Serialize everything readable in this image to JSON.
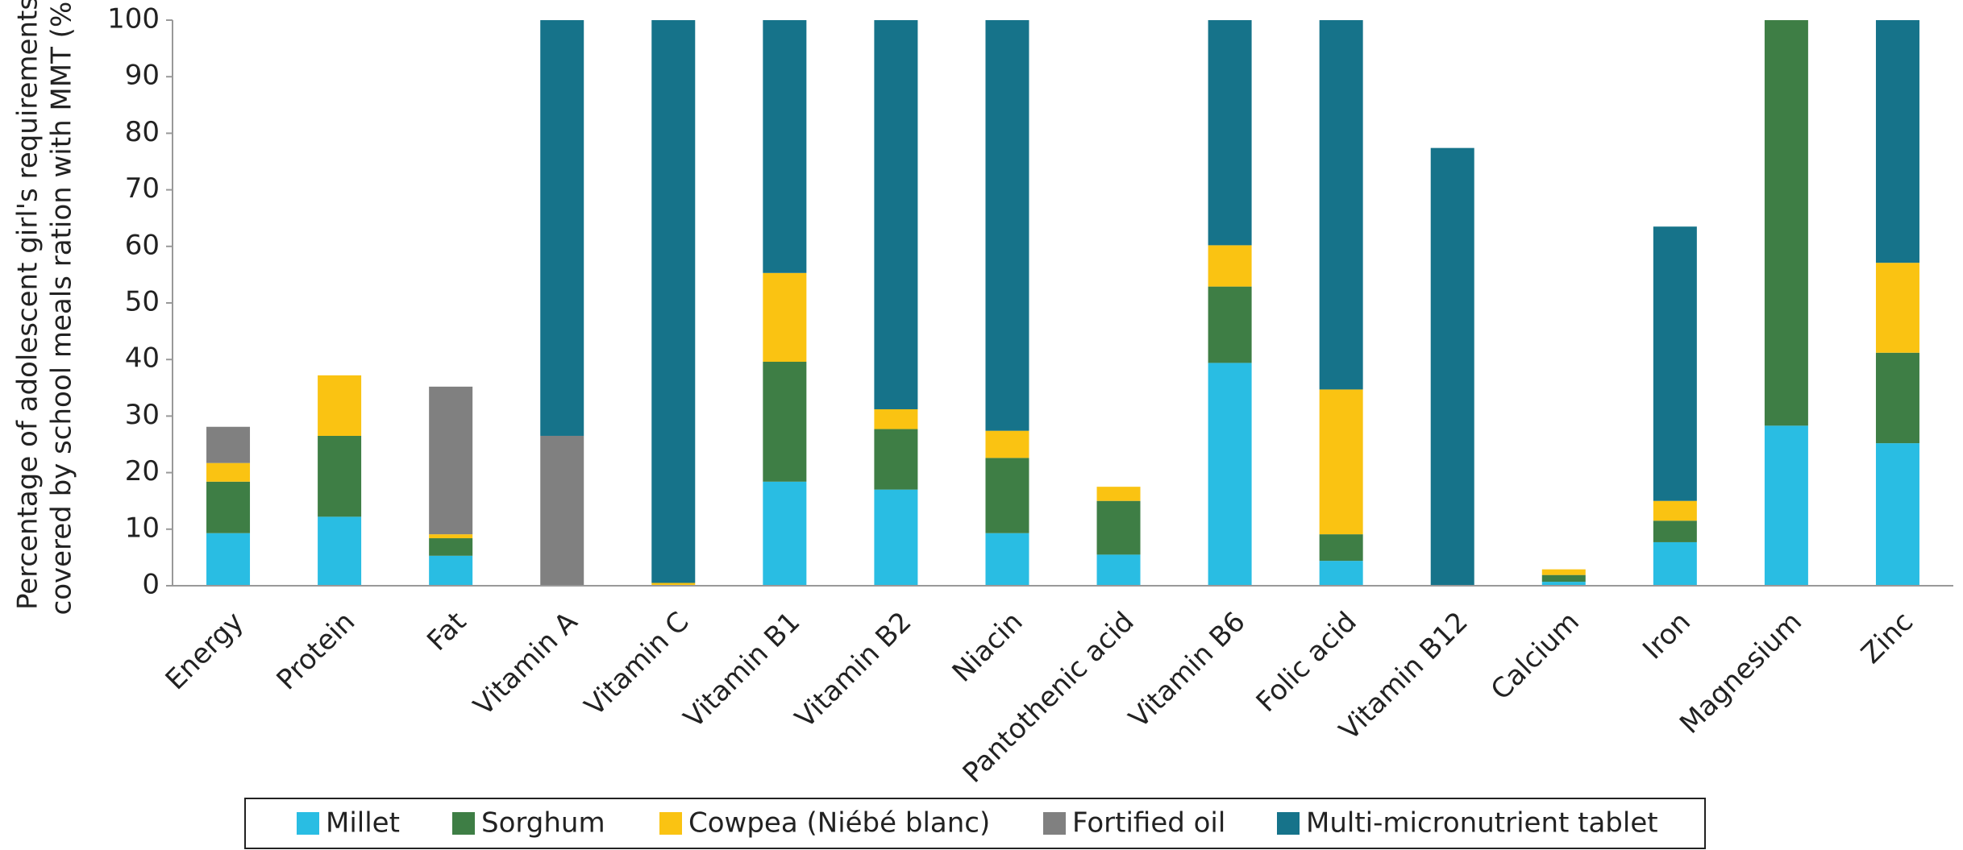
{
  "chart_data": {
    "type": "stacked_bar",
    "ylabel": [
      "Percentage of adolescent girl's requirements",
      "covered by school meals ration with MMT (%)"
    ],
    "categories": [
      "Energy",
      "Protein",
      "Fat",
      "Vitamin A",
      "Vitamin C",
      "Vitamin B1",
      "Vitamin B2",
      "Niacin",
      "Pantothenic acid",
      "Vitamin B6",
      "Folic acid",
      "Vitamin B12",
      "Calcium",
      "Iron",
      "Magnesium",
      "Zinc"
    ],
    "series": [
      {
        "name": "Millet",
        "color": "#29bde3",
        "values": [
          9.3,
          12.2,
          5.3,
          0,
          0,
          18.4,
          17.0,
          9.3,
          5.5,
          39.4,
          4.4,
          0,
          0.7,
          7.7,
          28.3,
          25.2
        ]
      },
      {
        "name": "Sorghum",
        "color": "#3e7e45",
        "values": [
          9.1,
          14.3,
          3.1,
          0,
          0,
          21.2,
          10.7,
          13.3,
          9.5,
          13.5,
          4.7,
          0,
          1.2,
          3.8,
          71.7,
          16.0
        ]
      },
      {
        "name": "Cowpea (Niébé blanc)",
        "color": "#fac312",
        "values": [
          3.3,
          10.7,
          0.7,
          0,
          0.5,
          15.7,
          3.5,
          4.8,
          2.5,
          7.3,
          25.6,
          0,
          1.0,
          3.5,
          0,
          15.9
        ]
      },
      {
        "name": "Fortified oil",
        "color": "#808080",
        "values": [
          6.4,
          0,
          26.1,
          26.5,
          0,
          0,
          0,
          0,
          0,
          0,
          0,
          0,
          0,
          0,
          0,
          0
        ]
      },
      {
        "name": "Multi-micronutrient tablet",
        "color": "#16738a",
        "values": [
          0,
          0,
          0,
          73.5,
          99.5,
          44.7,
          68.8,
          72.6,
          0,
          39.8,
          65.3,
          77.4,
          0,
          48.5,
          0,
          42.9
        ]
      }
    ],
    "ylim": [
      0,
      100
    ],
    "yticks": [
      0,
      10,
      20,
      30,
      40,
      50,
      60,
      70,
      80,
      90,
      100
    ],
    "legend": "bottom"
  }
}
